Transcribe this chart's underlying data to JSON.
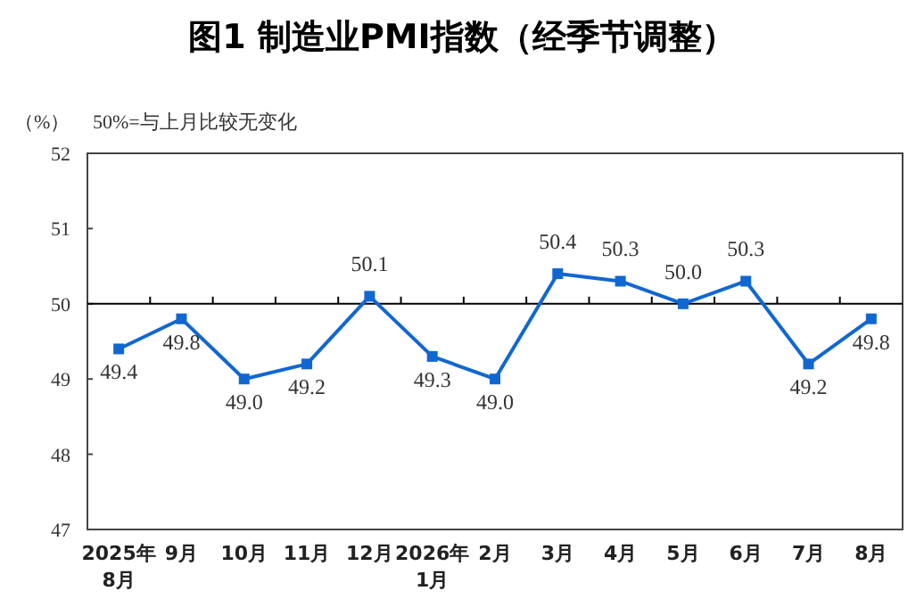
{
  "chart_data": {
    "type": "line",
    "title": "图1 制造业PMI指数（经季节调整）",
    "ylabel": "（%）",
    "annotations": [
      "50%=与上月比较无变化"
    ],
    "categories": [
      "2025年\n8月",
      "9月",
      "10月",
      "11月",
      "12月",
      "2026年\n1月",
      "2月",
      "3月",
      "4月",
      "5月",
      "6月",
      "7月",
      "8月"
    ],
    "series": [
      {
        "color": "#1167d1",
        "values": [
          49.4,
          49.8,
          49.0,
          49.2,
          50.1,
          49.3,
          49.0,
          50.4,
          50.3,
          50.0,
          50.3,
          49.2,
          49.8
        ],
        "value_labels": [
          "49.4",
          "49.8",
          "49.0",
          "49.2",
          "50.1",
          "49.3",
          "49.0",
          "50.4",
          "50.3",
          "50.0",
          "50.3",
          "49.2",
          "49.8"
        ]
      }
    ],
    "ylim": [
      47,
      52
    ],
    "yticks": [
      47,
      48,
      49,
      50,
      51,
      52
    ],
    "ref_lines": [
      {
        "axis": "y",
        "value": 50,
        "color": "#000000"
      }
    ],
    "marker": "square",
    "line_style": "solid"
  }
}
